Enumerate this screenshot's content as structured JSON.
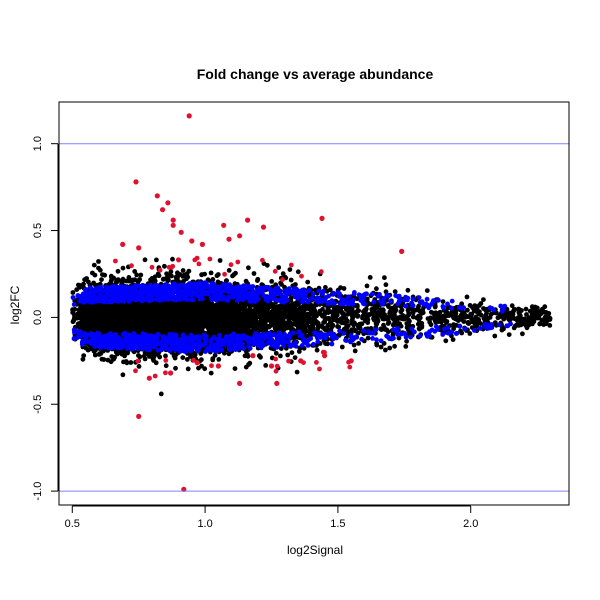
{
  "chart_data": {
    "type": "scatter",
    "title": "Fold change vs average abundance",
    "xlabel": "log2Signal",
    "ylabel": "log2FC",
    "xlim": [
      0.45,
      2.37
    ],
    "ylim": [
      -1.08,
      1.24
    ],
    "x_ticks": [
      0.5,
      1.0,
      1.5,
      2.0
    ],
    "y_ticks": [
      -1.0,
      -0.5,
      0.0,
      0.5,
      1.0
    ],
    "reference_lines": [
      1.0,
      -1.0
    ],
    "colors": {
      "background": "#000000",
      "significant": "#0000ff",
      "strong": "#e0102f",
      "reference_line": "#8080ff"
    },
    "highlighted_points": [
      {
        "x": 0.94,
        "y": 1.16
      },
      {
        "x": 0.74,
        "y": 0.78
      },
      {
        "x": 0.82,
        "y": 0.7
      },
      {
        "x": 0.86,
        "y": 0.66
      },
      {
        "x": 0.84,
        "y": 0.62
      },
      {
        "x": 0.88,
        "y": 0.56
      },
      {
        "x": 0.88,
        "y": 0.53
      },
      {
        "x": 0.91,
        "y": 0.49
      },
      {
        "x": 0.95,
        "y": 0.44
      },
      {
        "x": 1.07,
        "y": 0.53
      },
      {
        "x": 1.09,
        "y": 0.45
      },
      {
        "x": 1.16,
        "y": 0.56
      },
      {
        "x": 1.22,
        "y": 0.52
      },
      {
        "x": 1.44,
        "y": 0.57
      },
      {
        "x": 1.74,
        "y": 0.38
      },
      {
        "x": 0.69,
        "y": 0.42
      },
      {
        "x": 0.75,
        "y": 0.4
      },
      {
        "x": 0.99,
        "y": 0.42
      },
      {
        "x": 1.13,
        "y": 0.47
      },
      {
        "x": 0.75,
        "y": -0.57
      },
      {
        "x": 0.92,
        "y": -0.99
      },
      {
        "x": 0.87,
        "y": -0.32
      },
      {
        "x": 0.79,
        "y": -0.35
      },
      {
        "x": 0.97,
        "y": -0.26
      },
      {
        "x": 1.05,
        "y": -0.28
      },
      {
        "x": 1.13,
        "y": -0.38
      },
      {
        "x": 1.27,
        "y": -0.38
      },
      {
        "x": 1.36,
        "y": -0.25
      },
      {
        "x": 1.45,
        "y": -0.22
      },
      {
        "x": 1.55,
        "y": -0.25
      },
      {
        "x": 1.25,
        "y": -0.28
      },
      {
        "x": 1.18,
        "y": -0.22
      }
    ]
  }
}
